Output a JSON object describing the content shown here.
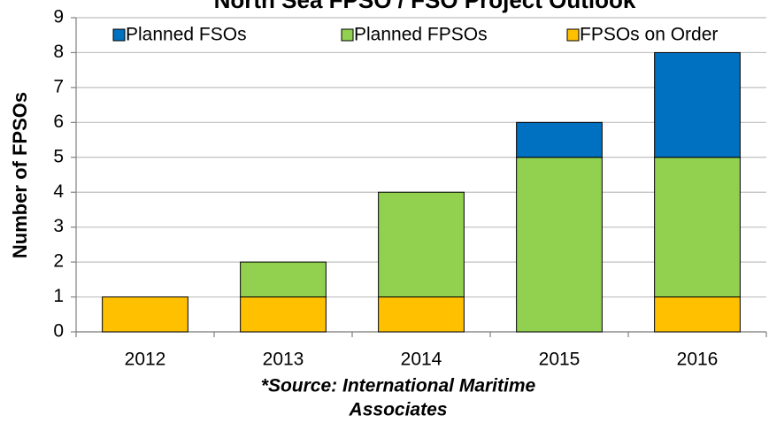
{
  "chart_data": {
    "type": "stacked_bar",
    "title": "North Sea FPSO / FSO Project Outlook",
    "y_label": "Number of FPSOs",
    "source": [
      "*Source: International Maritime",
      "Associates"
    ],
    "categories": [
      "2012",
      "2013",
      "2014",
      "2015",
      "2016"
    ],
    "series": [
      {
        "name": "Planned FSOs",
        "color": "#0070c0",
        "values": [
          0,
          0,
          0,
          1,
          3
        ]
      },
      {
        "name": "Planned FPSOs",
        "color": "#92d050",
        "values": [
          0,
          1,
          3,
          5,
          4
        ]
      },
      {
        "name": "FPSOs on Order",
        "color": "#ffc000",
        "values": [
          1,
          1,
          1,
          0,
          1
        ]
      }
    ],
    "ylim": [
      0,
      9
    ],
    "yticks": [
      0,
      1,
      2,
      3,
      4,
      5,
      6,
      7,
      8,
      9
    ],
    "grid": true,
    "legend": "top"
  }
}
